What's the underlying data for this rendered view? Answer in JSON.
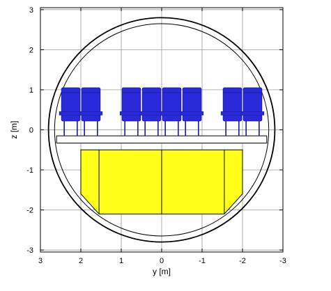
{
  "chart_data": {
    "type": "diagram",
    "xlabel": "y [m]",
    "ylabel": "z [m]",
    "xlim": [
      3.0,
      -3.0
    ],
    "ylim": [
      -3.05,
      3.05
    ],
    "x_ticks": [
      3,
      2,
      1,
      0,
      -1,
      -2,
      -3
    ],
    "y_ticks": [
      3,
      2,
      1,
      0,
      -1,
      -2,
      -3
    ],
    "grid": true,
    "colors": {
      "seat": "#2a2adb",
      "seat_dark": "#1a1a9a",
      "cargo": "#ffff1a",
      "outline": "#000000",
      "grid": "#888888"
    },
    "fuselage": {
      "outer_radius": 2.8,
      "inner_radius": 2.65,
      "center": [
        0,
        0
      ]
    },
    "floor": {
      "y_left": 2.6,
      "y_right": -2.6,
      "z_top": -0.15,
      "z_bottom": -0.33
    },
    "seat_centers": [
      2.25,
      1.75,
      0.75,
      0.25,
      -0.25,
      -0.75,
      -1.75,
      -2.25
    ],
    "seat_geometry": {
      "back_top": 1.05,
      "back_bottom": 0.22,
      "half_width": 0.23,
      "arm_z": 0.42,
      "leg_bottom": -0.15
    },
    "cargo": {
      "top": -0.5,
      "bottom": -2.1,
      "y_left": 2.0,
      "y_right": -2.0,
      "chamfer_y_left": 1.55,
      "chamfer_y_right": -1.55,
      "chamfer_z": -1.6,
      "dividers": [
        1.55,
        0.0,
        -1.55
      ]
    }
  }
}
